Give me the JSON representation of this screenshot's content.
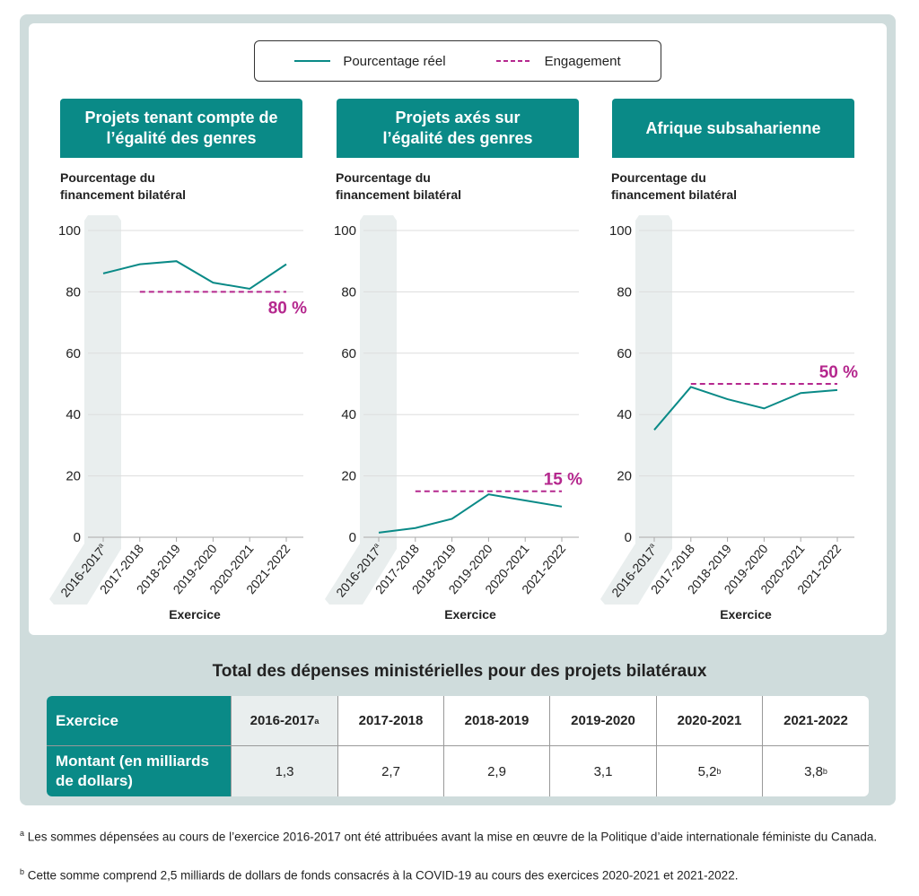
{
  "legend": {
    "actual": "Pourcentage réel",
    "commitment": "Engagement"
  },
  "colors": {
    "actual": "#0a8a87",
    "commitment": "#b5288e",
    "header": "#0a8a87",
    "shade": "#e9eeee"
  },
  "chart_data": [
    {
      "type": "line",
      "title": "Projets tenant compte de l’égalité des genres",
      "ylabel": "Pourcentage du financement bilatéral",
      "xlabel": "Exercice",
      "ylim": [
        0,
        100
      ],
      "yticks": [
        0,
        20,
        40,
        60,
        80,
        100
      ],
      "grid": true,
      "categories": [
        "2016-2017",
        "2017-2018",
        "2018-2019",
        "2019-2020",
        "2020-2021",
        "2021-2022"
      ],
      "category_notes": [
        "a",
        "",
        "",
        "",
        "",
        ""
      ],
      "series": [
        {
          "name": "Pourcentage réel",
          "values": [
            86,
            89,
            90,
            83,
            81,
            89
          ]
        },
        {
          "name": "Engagement",
          "values": [
            null,
            80,
            80,
            80,
            80,
            80
          ]
        }
      ],
      "commitment_label": "80 %"
    },
    {
      "type": "line",
      "title": "Projets axés sur l’égalité des genres",
      "ylabel": "Pourcentage du financement bilatéral",
      "xlabel": "Exercice",
      "ylim": [
        0,
        100
      ],
      "yticks": [
        0,
        20,
        40,
        60,
        80,
        100
      ],
      "grid": true,
      "categories": [
        "2016-2017",
        "2017-2018",
        "2018-2019",
        "2019-2020",
        "2020-2021",
        "2021-2022"
      ],
      "category_notes": [
        "a",
        "",
        "",
        "",
        "",
        ""
      ],
      "series": [
        {
          "name": "Pourcentage réel",
          "values": [
            1.5,
            3,
            6,
            14,
            12,
            10
          ]
        },
        {
          "name": "Engagement",
          "values": [
            null,
            15,
            15,
            15,
            15,
            15
          ]
        }
      ],
      "commitment_label": "15 %"
    },
    {
      "type": "line",
      "title": "Afrique subsaharienne",
      "ylabel": "Pourcentage du financement bilatéral",
      "xlabel": "Exercice",
      "ylim": [
        0,
        100
      ],
      "yticks": [
        0,
        20,
        40,
        60,
        80,
        100
      ],
      "grid": true,
      "categories": [
        "2016-2017",
        "2017-2018",
        "2018-2019",
        "2019-2020",
        "2020-2021",
        "2021-2022"
      ],
      "category_notes": [
        "a",
        "",
        "",
        "",
        "",
        ""
      ],
      "series": [
        {
          "name": "Pourcentage réel",
          "values": [
            35,
            49,
            45,
            42,
            47,
            48
          ]
        },
        {
          "name": "Engagement",
          "values": [
            null,
            50,
            50,
            50,
            50,
            50
          ]
        }
      ],
      "commitment_label": "50 %"
    }
  ],
  "table": {
    "title": "Total des dépenses ministérielles pour des projets bilatéraux",
    "row_header_1": "Exercice",
    "row_header_2": "Montant (en milliards de dollars)",
    "years": [
      "2016-2017",
      "2017-2018",
      "2018-2019",
      "2019-2020",
      "2020-2021",
      "2021-2022"
    ],
    "year_notes": [
      "a",
      "",
      "",
      "",
      "",
      ""
    ],
    "amounts": [
      "1,3",
      "2,7",
      "2,9",
      "3,1",
      "5,2",
      "3,8"
    ],
    "amount_notes": [
      "",
      "",
      "",
      "",
      "b",
      "b"
    ]
  },
  "footnotes": [
    {
      "mark": "a",
      "text": "Les sommes dépensées au cours de l’exercice 2016-2017 ont été attribuées avant la mise en œuvre de la Politique d’aide internationale féministe du Canada."
    },
    {
      "mark": "b",
      "text": "Cette somme comprend 2,5 milliards de dollars de fonds consacrés à la COVID-19 au cours des exercices 2020-2021 et 2021-2022."
    }
  ]
}
